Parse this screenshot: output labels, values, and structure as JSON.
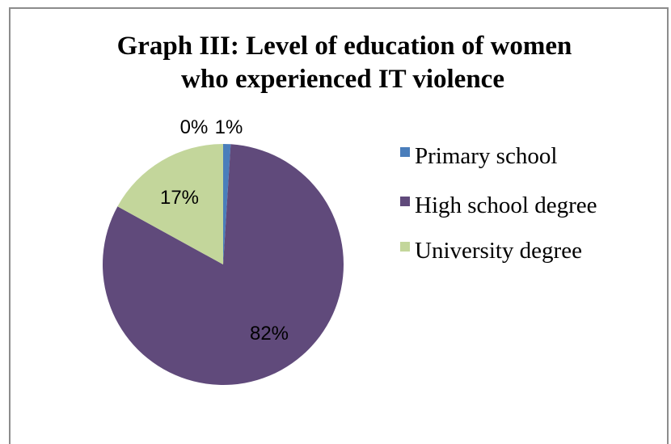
{
  "chart_data": {
    "type": "pie",
    "title": "Graph III: Level of education of women who experienced IT violence",
    "title_lines": [
      "Graph III: Level of education of women",
      "who experienced IT  violence"
    ],
    "slices": [
      {
        "label": "Primary school",
        "value": 1,
        "display": "1%",
        "color": "#4a7ebb"
      },
      {
        "label": "High school degree",
        "value": 82,
        "display": "82%",
        "color": "#604a7b"
      },
      {
        "label": "University degree",
        "value": 17,
        "display": "17%",
        "color": "#c3d69b"
      }
    ],
    "extra_labels": [
      "0%"
    ],
    "legend": {
      "position": "right",
      "entries": [
        "Primary school",
        "High school degree",
        "University degree"
      ]
    }
  }
}
